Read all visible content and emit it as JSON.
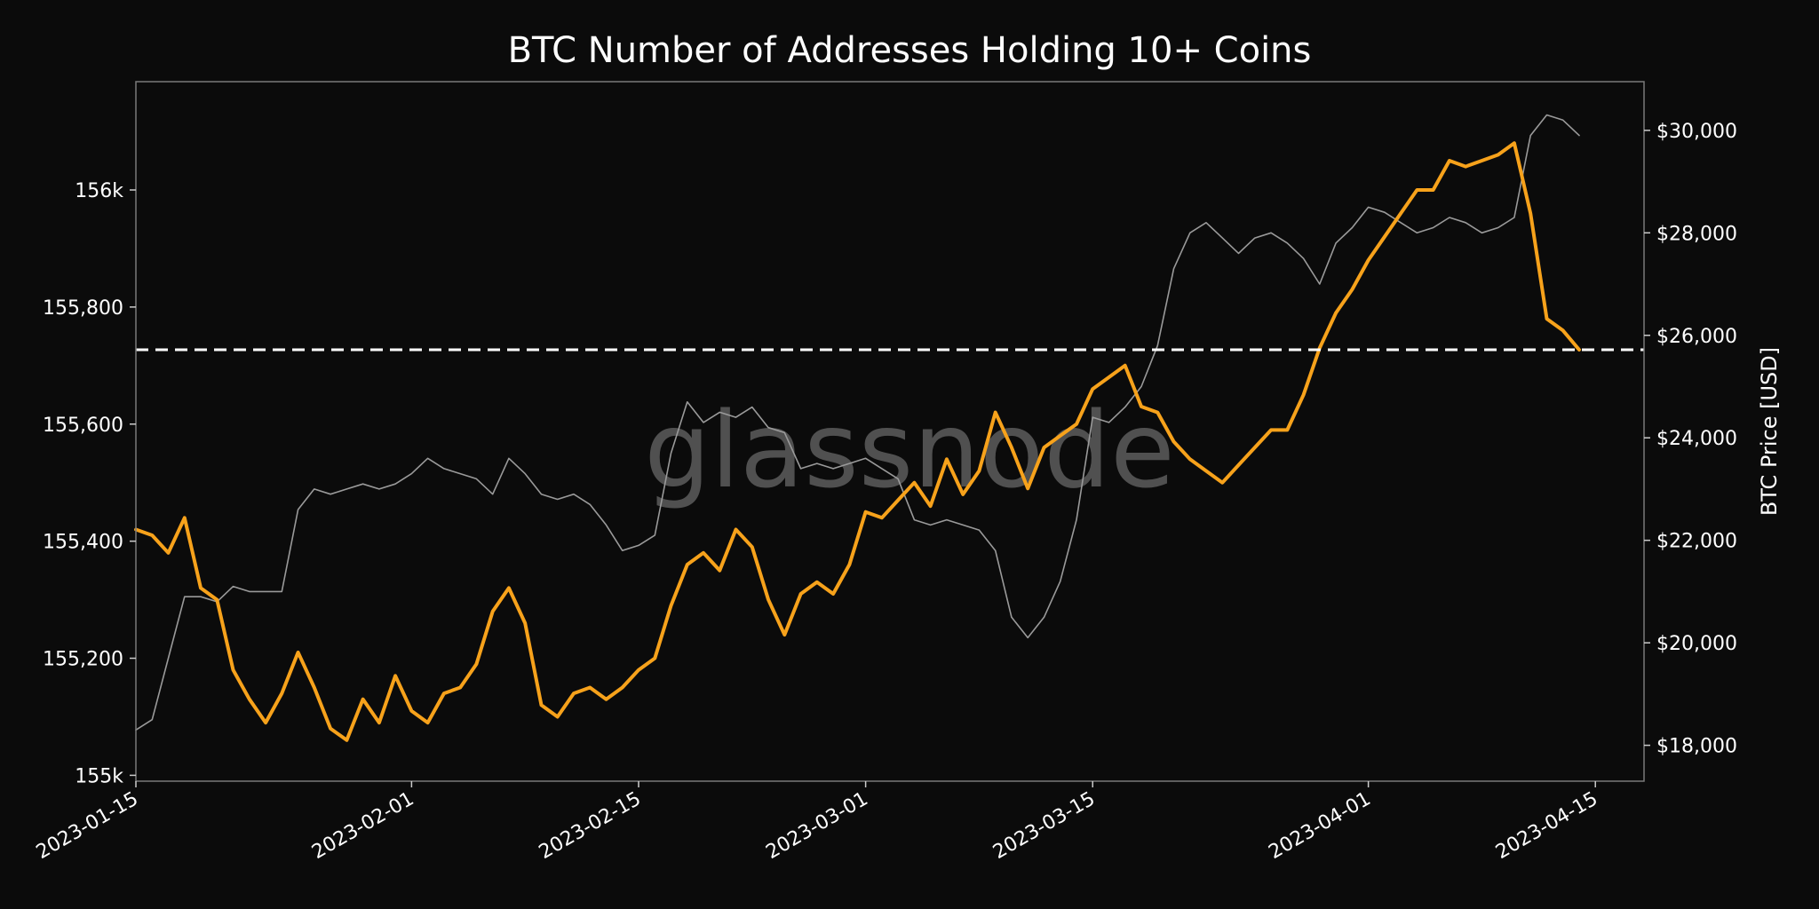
{
  "chart_data": {
    "type": "line",
    "title": "BTC Number of Addresses Holding 10+ Coins",
    "watermark": "glassnode",
    "x_ticks": [
      "2023-01-15",
      "2023-02-01",
      "2023-02-15",
      "2023-03-01",
      "2023-03-15",
      "2023-04-01",
      "2023-04-15"
    ],
    "xlim": [
      "2023-01-15",
      "2023-04-18"
    ],
    "left_axis": {
      "label": "",
      "ylim": [
        154990,
        156185
      ],
      "ticks": [
        155000,
        155200,
        155400,
        155600,
        155800,
        156000
      ],
      "tick_labels": [
        "155k",
        "155,200",
        "155,400",
        "155,600",
        "155,800",
        "156k"
      ]
    },
    "right_axis": {
      "label": "BTC Price [USD]",
      "ylim": [
        17300,
        30950
      ],
      "ticks": [
        18000,
        20000,
        22000,
        24000,
        26000,
        28000,
        30000
      ],
      "tick_labels": [
        "$18,000",
        "$20,000",
        "$22,000",
        "$24,000",
        "$26,000",
        "$28,000",
        "$30,000"
      ]
    },
    "reference_line": {
      "axis": "left",
      "value": 155727,
      "style": "dashed"
    },
    "series": [
      {
        "axis": "left",
        "color": "#f7a21b",
        "points": [
          [
            "2023-01-15",
            155420
          ],
          [
            "2023-01-16",
            155410
          ],
          [
            "2023-01-17",
            155380
          ],
          [
            "2023-01-18",
            155440
          ],
          [
            "2023-01-19",
            155320
          ],
          [
            "2023-01-20",
            155300
          ],
          [
            "2023-01-21",
            155180
          ],
          [
            "2023-01-22",
            155130
          ],
          [
            "2023-01-23",
            155090
          ],
          [
            "2023-01-24",
            155140
          ],
          [
            "2023-01-25",
            155210
          ],
          [
            "2023-01-26",
            155150
          ],
          [
            "2023-01-27",
            155080
          ],
          [
            "2023-01-28",
            155060
          ],
          [
            "2023-01-29",
            155130
          ],
          [
            "2023-01-30",
            155090
          ],
          [
            "2023-01-31",
            155170
          ],
          [
            "2023-02-01",
            155110
          ],
          [
            "2023-02-02",
            155090
          ],
          [
            "2023-02-03",
            155140
          ],
          [
            "2023-02-04",
            155150
          ],
          [
            "2023-02-05",
            155190
          ],
          [
            "2023-02-06",
            155280
          ],
          [
            "2023-02-07",
            155320
          ],
          [
            "2023-02-08",
            155260
          ],
          [
            "2023-02-09",
            155120
          ],
          [
            "2023-02-10",
            155100
          ],
          [
            "2023-02-11",
            155140
          ],
          [
            "2023-02-12",
            155150
          ],
          [
            "2023-02-13",
            155130
          ],
          [
            "2023-02-14",
            155150
          ],
          [
            "2023-02-15",
            155180
          ],
          [
            "2023-02-16",
            155200
          ],
          [
            "2023-02-17",
            155290
          ],
          [
            "2023-02-18",
            155360
          ],
          [
            "2023-02-19",
            155380
          ],
          [
            "2023-02-20",
            155350
          ],
          [
            "2023-02-21",
            155420
          ],
          [
            "2023-02-22",
            155390
          ],
          [
            "2023-02-23",
            155300
          ],
          [
            "2023-02-24",
            155240
          ],
          [
            "2023-02-25",
            155310
          ],
          [
            "2023-02-26",
            155330
          ],
          [
            "2023-02-27",
            155310
          ],
          [
            "2023-02-28",
            155360
          ],
          [
            "2023-03-01",
            155450
          ],
          [
            "2023-03-02",
            155440
          ],
          [
            "2023-03-03",
            155470
          ],
          [
            "2023-03-04",
            155500
          ],
          [
            "2023-03-05",
            155460
          ],
          [
            "2023-03-06",
            155540
          ],
          [
            "2023-03-07",
            155480
          ],
          [
            "2023-03-08",
            155520
          ],
          [
            "2023-03-09",
            155620
          ],
          [
            "2023-03-10",
            155560
          ],
          [
            "2023-03-11",
            155490
          ],
          [
            "2023-03-12",
            155560
          ],
          [
            "2023-03-13",
            155580
          ],
          [
            "2023-03-14",
            155600
          ],
          [
            "2023-03-15",
            155660
          ],
          [
            "2023-03-16",
            155680
          ],
          [
            "2023-03-17",
            155700
          ],
          [
            "2023-03-18",
            155630
          ],
          [
            "2023-03-19",
            155620
          ],
          [
            "2023-03-20",
            155570
          ],
          [
            "2023-03-21",
            155540
          ],
          [
            "2023-03-22",
            155520
          ],
          [
            "2023-03-23",
            155500
          ],
          [
            "2023-03-24",
            155530
          ],
          [
            "2023-03-25",
            155560
          ],
          [
            "2023-03-26",
            155590
          ],
          [
            "2023-03-27",
            155590
          ],
          [
            "2023-03-28",
            155650
          ],
          [
            "2023-03-29",
            155730
          ],
          [
            "2023-03-30",
            155790
          ],
          [
            "2023-03-31",
            155830
          ],
          [
            "2023-04-01",
            155880
          ],
          [
            "2023-04-02",
            155920
          ],
          [
            "2023-04-03",
            155960
          ],
          [
            "2023-04-04",
            156000
          ],
          [
            "2023-04-05",
            156000
          ],
          [
            "2023-04-06",
            156050
          ],
          [
            "2023-04-07",
            156040
          ],
          [
            "2023-04-08",
            156050
          ],
          [
            "2023-04-09",
            156060
          ],
          [
            "2023-04-10",
            156080
          ],
          [
            "2023-04-11",
            155960
          ],
          [
            "2023-04-12",
            155780
          ],
          [
            "2023-04-13",
            155760
          ],
          [
            "2023-04-14",
            155727
          ]
        ]
      },
      {
        "axis": "right",
        "color": "#9a9a9a",
        "points": [
          [
            "2023-01-15",
            18300
          ],
          [
            "2023-01-16",
            18500
          ],
          [
            "2023-01-17",
            19700
          ],
          [
            "2023-01-18",
            20900
          ],
          [
            "2023-01-19",
            20900
          ],
          [
            "2023-01-20",
            20800
          ],
          [
            "2023-01-21",
            21100
          ],
          [
            "2023-01-22",
            21000
          ],
          [
            "2023-01-23",
            21000
          ],
          [
            "2023-01-24",
            21000
          ],
          [
            "2023-01-25",
            22600
          ],
          [
            "2023-01-26",
            23000
          ],
          [
            "2023-01-27",
            22900
          ],
          [
            "2023-01-28",
            23000
          ],
          [
            "2023-01-29",
            23100
          ],
          [
            "2023-01-30",
            23000
          ],
          [
            "2023-01-31",
            23100
          ],
          [
            "2023-02-01",
            23300
          ],
          [
            "2023-02-02",
            23600
          ],
          [
            "2023-02-03",
            23400
          ],
          [
            "2023-02-04",
            23300
          ],
          [
            "2023-02-05",
            23200
          ],
          [
            "2023-02-06",
            22900
          ],
          [
            "2023-02-07",
            23600
          ],
          [
            "2023-02-08",
            23300
          ],
          [
            "2023-02-09",
            22900
          ],
          [
            "2023-02-10",
            22800
          ],
          [
            "2023-02-11",
            22900
          ],
          [
            "2023-02-12",
            22700
          ],
          [
            "2023-02-13",
            22300
          ],
          [
            "2023-02-14",
            21800
          ],
          [
            "2023-02-15",
            21900
          ],
          [
            "2023-02-16",
            22100
          ],
          [
            "2023-02-17",
            23700
          ],
          [
            "2023-02-18",
            24700
          ],
          [
            "2023-02-19",
            24300
          ],
          [
            "2023-02-20",
            24500
          ],
          [
            "2023-02-21",
            24400
          ],
          [
            "2023-02-22",
            24600
          ],
          [
            "2023-02-23",
            24200
          ],
          [
            "2023-02-24",
            24100
          ],
          [
            "2023-02-25",
            23400
          ],
          [
            "2023-02-26",
            23500
          ],
          [
            "2023-02-27",
            23400
          ],
          [
            "2023-02-28",
            23500
          ],
          [
            "2023-03-01",
            23600
          ],
          [
            "2023-03-02",
            23400
          ],
          [
            "2023-03-03",
            23200
          ],
          [
            "2023-03-04",
            22400
          ],
          [
            "2023-03-05",
            22300
          ],
          [
            "2023-03-06",
            22400
          ],
          [
            "2023-03-07",
            22300
          ],
          [
            "2023-03-08",
            22200
          ],
          [
            "2023-03-09",
            21800
          ],
          [
            "2023-03-10",
            20500
          ],
          [
            "2023-03-11",
            20100
          ],
          [
            "2023-03-12",
            20500
          ],
          [
            "2023-03-13",
            21200
          ],
          [
            "2023-03-14",
            22400
          ],
          [
            "2023-03-15",
            24400
          ],
          [
            "2023-03-16",
            24300
          ],
          [
            "2023-03-17",
            24600
          ],
          [
            "2023-03-18",
            25000
          ],
          [
            "2023-03-19",
            25800
          ],
          [
            "2023-03-20",
            27300
          ],
          [
            "2023-03-21",
            28000
          ],
          [
            "2023-03-22",
            28200
          ],
          [
            "2023-03-23",
            27900
          ],
          [
            "2023-03-24",
            27600
          ],
          [
            "2023-03-25",
            27900
          ],
          [
            "2023-03-26",
            28000
          ],
          [
            "2023-03-27",
            27800
          ],
          [
            "2023-03-28",
            27500
          ],
          [
            "2023-03-29",
            27000
          ],
          [
            "2023-03-30",
            27800
          ],
          [
            "2023-03-31",
            28100
          ],
          [
            "2023-04-01",
            28500
          ],
          [
            "2023-04-02",
            28400
          ],
          [
            "2023-04-03",
            28200
          ],
          [
            "2023-04-04",
            28000
          ],
          [
            "2023-04-05",
            28100
          ],
          [
            "2023-04-06",
            28300
          ],
          [
            "2023-04-07",
            28200
          ],
          [
            "2023-04-08",
            28000
          ],
          [
            "2023-04-09",
            28100
          ],
          [
            "2023-04-10",
            28300
          ],
          [
            "2023-04-11",
            29900
          ],
          [
            "2023-04-12",
            30300
          ],
          [
            "2023-04-13",
            30200
          ],
          [
            "2023-04-14",
            29900
          ]
        ]
      }
    ]
  }
}
